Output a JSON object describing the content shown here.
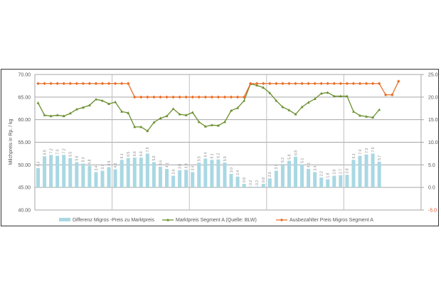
{
  "chart_data": {
    "type": "bar+line",
    "title": "",
    "ylabel": "Milchpreis in Rp. / kg",
    "ylim": [
      40,
      70
    ],
    "y2lim": [
      -5,
      25
    ],
    "yticks": [
      "40.00",
      "45.00",
      "50.00",
      "55.00",
      "60.00",
      "65.00",
      "70.00"
    ],
    "y2ticks": [
      "-5.0",
      "0.0",
      "5.0",
      "10.0",
      "15.0",
      "20.0",
      "25.0"
    ],
    "grid": true,
    "legend_position": "bottom",
    "n_categories": 60,
    "series": [
      {
        "name": "Differenz Migros -Preis zu Marktpreis",
        "type": "bar",
        "axis": "right",
        "color": "#a9d8e3",
        "values": [
          4.3,
          6.9,
          7.2,
          7.0,
          7.2,
          6.5,
          5.6,
          5.3,
          4.8,
          3.4,
          3.7,
          4.5,
          4.0,
          6.1,
          6.5,
          6.6,
          6.6,
          7.5,
          5.6,
          4.6,
          4.1,
          2.6,
          3.8,
          3.9,
          3.4,
          5.5,
          6.4,
          6.1,
          6.2,
          5.5,
          3.0,
          2.4,
          0.8,
          0.2,
          0.2,
          0.8,
          2.0,
          3.7,
          5.2,
          5.9,
          6.8,
          5.1,
          4.1,
          3.4,
          2.2,
          1.8,
          2.6,
          2.7,
          2.8,
          6.1,
          7.0,
          7.3,
          7.5,
          5.7
        ],
        "labels": [
          "4.3",
          "6.9",
          "7.2",
          "7.0",
          "7.2",
          "6.5",
          "5.6",
          "5.3",
          "4.8",
          "3.4",
          "3.7",
          "4.5",
          "4.0",
          "6.1",
          "6.5",
          "6.6",
          "6.6",
          "7.5",
          "5.6",
          "4.6",
          "4.1",
          "2.6",
          "3.8",
          "3.9",
          "3.4",
          "5.5",
          "6.4",
          "6.1",
          "6.2",
          "5.5",
          "3.0",
          "2.4",
          "0.8",
          "0.2",
          "0.2",
          "0.8",
          "2.0",
          "3.7",
          "5.2",
          "5.9",
          "6.8",
          "5.1",
          "4.1",
          "3.4",
          "2.2",
          "1.8",
          "2.6",
          "2.7",
          "2.8",
          "6.1",
          "7.0",
          "7.3",
          "7.5",
          "5.7"
        ]
      },
      {
        "name": "Marktpreis Segment A (Quelle: BLW)",
        "type": "line",
        "axis": "left",
        "color": "#6a8f2e",
        "marker": "triangle",
        "values": [
          63.7,
          61.0,
          60.8,
          61.0,
          60.8,
          61.4,
          62.3,
          62.7,
          63.2,
          64.5,
          64.2,
          63.5,
          63.9,
          61.8,
          61.5,
          58.4,
          58.4,
          57.5,
          59.4,
          60.3,
          60.8,
          62.4,
          61.2,
          61.0,
          61.6,
          59.5,
          58.5,
          58.8,
          58.7,
          59.5,
          62.0,
          62.6,
          64.2,
          67.9,
          67.6,
          67.1,
          65.9,
          64.2,
          62.8,
          62.1,
          61.2,
          62.8,
          63.8,
          64.6,
          65.8,
          66.0,
          65.2,
          65.2,
          65.2,
          61.8,
          60.9,
          60.7,
          60.5,
          62.2
        ]
      },
      {
        "name": "Ausbezahlter Preis Migros Segment A",
        "type": "line",
        "axis": "left",
        "color": "#e8702a",
        "marker": "diamond",
        "values": [
          68,
          68,
          68,
          68,
          68,
          68,
          68,
          68,
          68,
          68,
          68,
          68,
          68,
          68,
          68,
          65,
          65,
          65,
          65,
          65,
          65,
          65,
          65,
          65,
          65,
          65,
          65,
          65,
          65,
          65,
          65,
          65,
          65,
          68,
          68,
          68,
          68,
          68,
          68,
          68,
          68,
          68,
          68,
          68,
          68,
          68,
          68,
          68,
          68,
          68,
          68,
          68,
          68,
          68,
          65.5,
          65.5,
          68.5
        ]
      }
    ]
  }
}
